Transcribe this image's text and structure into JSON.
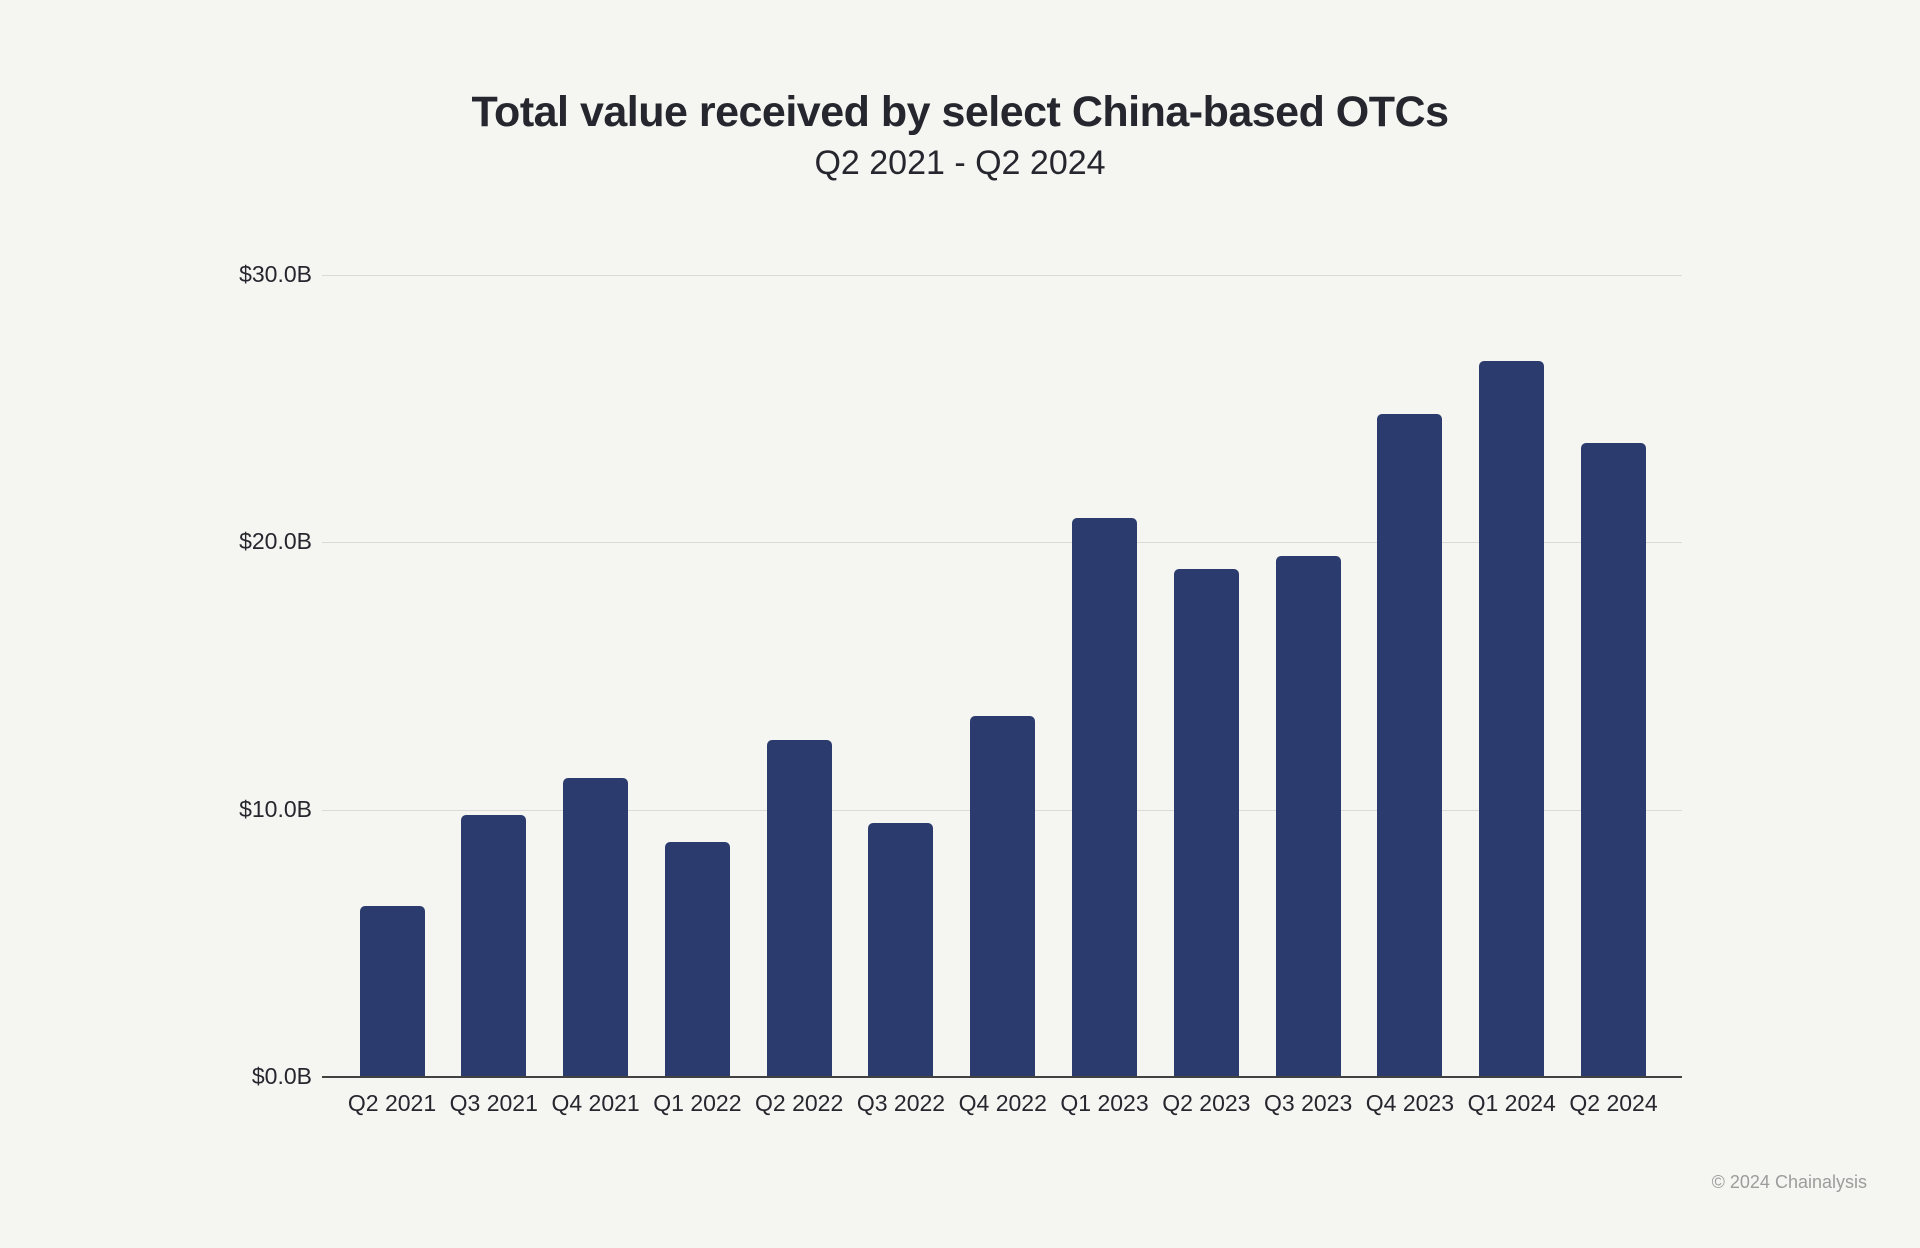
{
  "header": {
    "title": "Total value received by select China-based OTCs",
    "subtitle": "Q2 2021 - Q2 2024"
  },
  "footer": {
    "attribution": "© 2024 Chainalysis"
  },
  "colors": {
    "background": "#f5f5f2",
    "bar": "#2b3b6d",
    "gridline": "#dadad8",
    "axis_line": "#414141",
    "text_dark": "#26262e",
    "text_muted": "#9c9c9c"
  },
  "chart_data": {
    "type": "bar",
    "title": "Total value received by select China-based OTCs",
    "subtitle": "Q2 2021 - Q2 2024",
    "categories": [
      "Q2 2021",
      "Q3 2021",
      "Q4 2021",
      "Q1 2022",
      "Q2 2022",
      "Q3 2022",
      "Q4 2022",
      "Q1 2023",
      "Q2 2023",
      "Q3 2023",
      "Q4 2023",
      "Q1 2024",
      "Q2 2024"
    ],
    "values": [
      6.4,
      9.8,
      11.2,
      8.8,
      12.6,
      9.5,
      13.5,
      20.9,
      19.0,
      19.5,
      24.8,
      26.8,
      23.7
    ],
    "value_unit": "$B",
    "xlabel": "",
    "ylabel": "",
    "ylim": [
      0,
      30
    ],
    "yticks": [
      {
        "value": 0,
        "label": "$0.0B"
      },
      {
        "value": 10,
        "label": "$10.0B"
      },
      {
        "value": 20,
        "label": "$20.0B"
      },
      {
        "value": 30,
        "label": "$30.0B"
      }
    ],
    "grid": "horizontal",
    "legend": "none",
    "bar_color": "#2b3b6d"
  }
}
